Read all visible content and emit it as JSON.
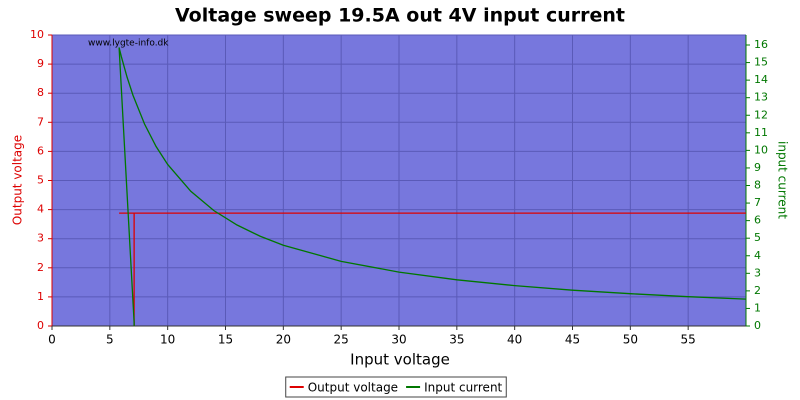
{
  "chart_data": {
    "type": "line",
    "title": "Voltage sweep 19.5A out 4V input current",
    "watermark": "www.lygte-info.dk",
    "xlabel": "Input voltage",
    "ylabel": "Output voltage",
    "y2label": "input current",
    "x": [
      60,
      55,
      50,
      45,
      40,
      35,
      30,
      25,
      20,
      18,
      16,
      14,
      12,
      10,
      9,
      8,
      7,
      6.5,
      6,
      5.8,
      7.1,
      7.1
    ],
    "series": [
      {
        "name": "Output voltage",
        "color": "#dd0000",
        "values": [
          3.88,
          3.88,
          3.88,
          3.88,
          3.88,
          3.88,
          3.88,
          3.88,
          3.88,
          3.88,
          3.88,
          3.88,
          3.88,
          3.88,
          3.88,
          3.88,
          3.88,
          3.88,
          3.88,
          3.88,
          3.88,
          0
        ]
      },
      {
        "name": "Input current",
        "color": "#007700",
        "axis": "y2",
        "values": [
          1.53,
          1.67,
          1.84,
          2.04,
          2.3,
          2.63,
          3.07,
          3.68,
          4.6,
          5.11,
          5.75,
          6.57,
          7.67,
          9.2,
          10.22,
          11.5,
          13.14,
          14.15,
          15.33,
          15.86,
          0.2,
          0
        ]
      }
    ],
    "xlim": [
      0,
      60
    ],
    "xticks": [
      0,
      5,
      10,
      15,
      20,
      25,
      30,
      35,
      40,
      45,
      50,
      55
    ],
    "ylim": [
      0,
      10
    ],
    "yticks": [
      0,
      1,
      2,
      3,
      4,
      5,
      6,
      7,
      8,
      9,
      10
    ],
    "y2lim": [
      0,
      16.57
    ],
    "y2ticks": [
      0,
      1,
      2,
      3,
      4,
      5,
      6,
      7,
      8,
      9,
      10,
      11,
      12,
      13,
      14,
      15,
      16
    ],
    "grid": true,
    "legend": "bottom",
    "background": "#7777dd",
    "ycolor": "#dd0000",
    "y2color": "#007700"
  }
}
